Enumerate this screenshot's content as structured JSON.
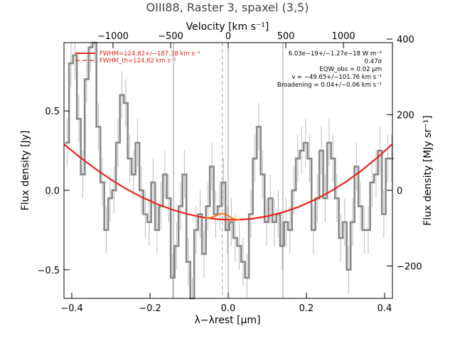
{
  "chart_data": {
    "type": "line",
    "title": "OIII88, Raster 3, spaxel (3,5)",
    "xlabel": "λ−λrest [μm]",
    "ylabel": "Flux density [Jy]",
    "top_axis_label": "Velocity [km s⁻¹]",
    "right_axis_label": "Flux density [MJy sr⁻¹]",
    "xlim": [
      -0.42,
      0.42
    ],
    "ylim": [
      -0.68,
      0.93
    ],
    "x_ticks": [
      -0.4,
      -0.2,
      0.0,
      0.2,
      0.4
    ],
    "x_tick_labels": [
      "−0.4",
      "−0.2",
      "0.0",
      "0.2",
      "0.4"
    ],
    "y_ticks": [
      -0.5,
      0.0,
      0.5
    ],
    "y_tick_labels": [
      "−0.5",
      "0.0",
      "0.5"
    ],
    "top_ticks_kms": [
      -1000,
      -500,
      0,
      500,
      1000
    ],
    "top_tick_labels": [
      "−1000",
      "−500",
      "0",
      "500",
      "1000"
    ],
    "right_ticks": [
      -200,
      0,
      200,
      400
    ],
    "right_tick_labels": [
      "−200",
      "0",
      "200",
      "400"
    ],
    "right_per_jy": 420,
    "rest_um": 88.356,
    "vertical_lines": [
      -0.14,
      0.0,
      0.14
    ],
    "dashed_line": -0.015,
    "legend": [
      {
        "label": "FWHM=124.82+/−187.38 km s⁻¹",
        "style": "solid",
        "color": "#e8251b"
      },
      {
        "label": "FWHM_th=124.82 km s⁻¹",
        "style": "dashed",
        "color": "#e8251b"
      }
    ],
    "annotations": [
      "6.03e−19+/−1.27e−18 W m⁻²",
      "0.47σ",
      "EQW_obs = 0.02 μm",
      "v = −49.65+/−101.76 km s⁻¹",
      "Broadening = 0.04+/−0.06 km s⁻¹"
    ],
    "series": [
      {
        "name": "spectrum",
        "style": "step",
        "color": "#888888",
        "x": [
          -0.412,
          -0.402,
          -0.392,
          -0.382,
          -0.372,
          -0.362,
          -0.352,
          -0.342,
          -0.332,
          -0.322,
          -0.312,
          -0.302,
          -0.292,
          -0.282,
          -0.272,
          -0.262,
          -0.252,
          -0.242,
          -0.232,
          -0.222,
          -0.212,
          -0.202,
          -0.192,
          -0.182,
          -0.172,
          -0.162,
          -0.152,
          -0.142,
          -0.132,
          -0.122,
          -0.112,
          -0.102,
          -0.092,
          -0.082,
          -0.072,
          -0.062,
          -0.052,
          -0.042,
          -0.032,
          -0.022,
          -0.012,
          -0.002,
          0.008,
          0.018,
          0.028,
          0.038,
          0.048,
          0.058,
          0.068,
          0.078,
          0.088,
          0.098,
          0.108,
          0.118,
          0.128,
          0.138,
          0.148,
          0.158,
          0.168,
          0.178,
          0.188,
          0.198,
          0.208,
          0.218,
          0.228,
          0.238,
          0.248,
          0.258,
          0.268,
          0.278,
          0.288,
          0.298,
          0.308,
          0.318,
          0.328,
          0.338,
          0.348,
          0.358,
          0.368,
          0.378,
          0.388,
          0.398,
          0.408,
          0.418
        ],
        "values": [
          0.3,
          0.8,
          0.85,
          0.45,
          0.1,
          0.7,
          0.9,
          0.95,
          0.4,
          0.05,
          -0.25,
          -0.05,
          0.0,
          0.3,
          0.6,
          0.55,
          0.2,
          0.1,
          0.3,
          0.0,
          -0.15,
          -0.2,
          0.05,
          -0.25,
          -0.1,
          0.1,
          -0.05,
          -0.55,
          -0.35,
          -0.1,
          0.1,
          -0.45,
          -0.7,
          -0.25,
          -0.15,
          -0.4,
          -0.1,
          0.15,
          -0.15,
          -0.1,
          0.05,
          -0.25,
          -0.2,
          -0.3,
          -0.35,
          -0.45,
          -0.55,
          -0.15,
          0.2,
          0.4,
          0.1,
          -0.2,
          -0.05,
          -0.2,
          -0.15,
          -0.35,
          -0.2,
          -0.25,
          0.0,
          0.2,
          0.25,
          0.3,
          0.2,
          -0.25,
          -0.05,
          0.25,
          -0.05,
          0.3,
          0.2,
          -0.05,
          -0.3,
          -0.2,
          -0.5,
          -0.2,
          0.15,
          -0.1,
          -0.25,
          -0.25,
          0.05,
          0.1,
          0.25,
          -0.15,
          0.2,
          0.2
        ],
        "errors": [
          0.15,
          0.15,
          0.15,
          0.15,
          0.15,
          0.15,
          0.15,
          0.15,
          0.15,
          0.15,
          0.15,
          0.15,
          0.15,
          0.15,
          0.15,
          0.15,
          0.15,
          0.15,
          0.15,
          0.15,
          0.15,
          0.15,
          0.15,
          0.15,
          0.15,
          0.15,
          0.15,
          0.15,
          0.15,
          0.15,
          0.15,
          0.15,
          0.15,
          0.15,
          0.15,
          0.15,
          0.15,
          0.15,
          0.15,
          0.15,
          0.15,
          0.15,
          0.15,
          0.15,
          0.15,
          0.15,
          0.15,
          0.15,
          0.15,
          0.15,
          0.15,
          0.15,
          0.15,
          0.15,
          0.15,
          0.15,
          0.15,
          0.15,
          0.15,
          0.15,
          0.15,
          0.15,
          0.15,
          0.15,
          0.15,
          0.15,
          0.15,
          0.15,
          0.15,
          0.15,
          0.15,
          0.15,
          0.15,
          0.15,
          0.15,
          0.15,
          0.15,
          0.15,
          0.15,
          0.15,
          0.15,
          0.15,
          0.15,
          0.15
        ]
      },
      {
        "name": "continuum fit",
        "color": "#e8251b",
        "x": [
          -0.42,
          -0.38,
          -0.34,
          -0.3,
          -0.26,
          -0.22,
          -0.18,
          -0.14,
          -0.1,
          -0.06,
          -0.02,
          0.02,
          0.06,
          0.1,
          0.14,
          0.18,
          0.22,
          0.26,
          0.3,
          0.34,
          0.38,
          0.42
        ],
        "values": [
          0.29,
          0.21,
          0.136,
          0.068,
          0.008,
          -0.044,
          -0.088,
          -0.124,
          -0.152,
          -0.172,
          -0.183,
          -0.186,
          -0.179,
          -0.163,
          -0.138,
          -0.104,
          -0.061,
          -0.009,
          0.052,
          0.123,
          0.203,
          0.292
        ]
      },
      {
        "name": "line fit",
        "color": "#ff6a00",
        "x": [
          -0.06,
          -0.05,
          -0.04,
          -0.03,
          -0.02,
          -0.01,
          0.0,
          0.01,
          0.02,
          0.03
        ],
        "values": [
          -0.175,
          -0.173,
          -0.168,
          -0.158,
          -0.148,
          -0.148,
          -0.16,
          -0.175,
          -0.183,
          -0.185
        ]
      }
    ]
  }
}
